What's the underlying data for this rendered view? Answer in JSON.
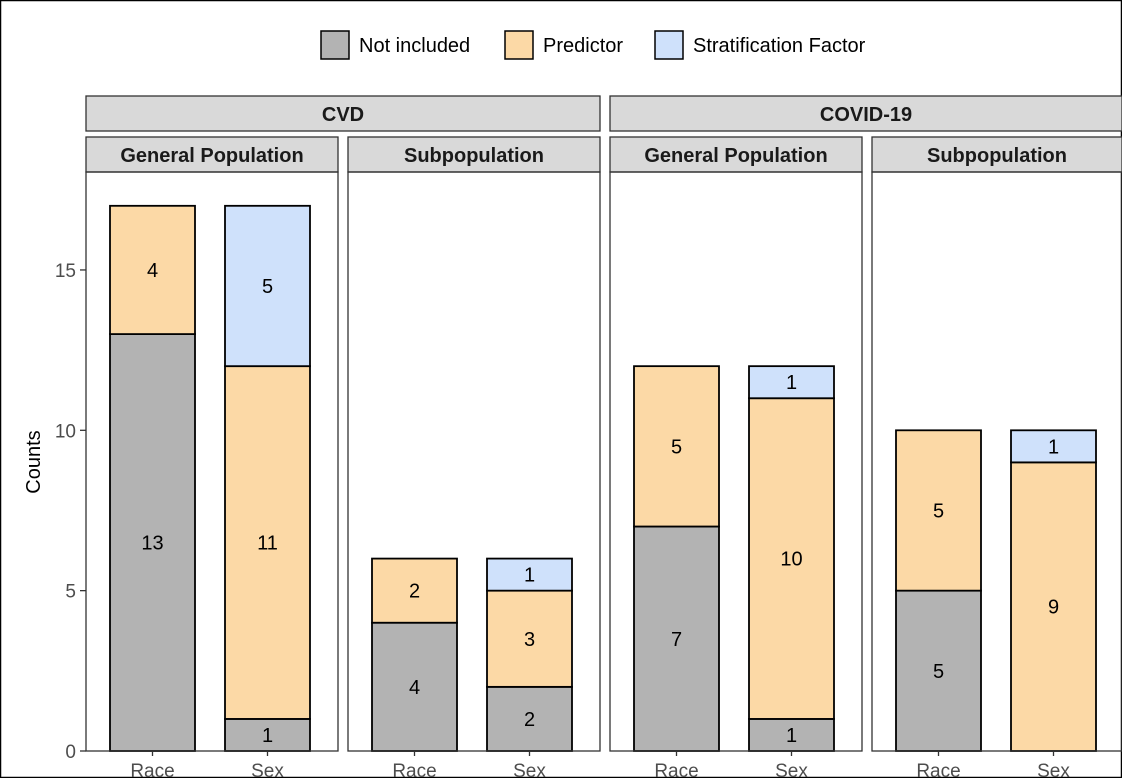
{
  "chart_data": {
    "type": "bar",
    "stacked": true,
    "ylabel": "Counts",
    "xlabel": "",
    "ylim": [
      0,
      18
    ],
    "y_ticks": [
      0,
      5,
      10,
      15
    ],
    "categories": [
      "Race",
      "Sex"
    ],
    "legend": {
      "position": "top",
      "entries": [
        {
          "name": "Not included",
          "color": "#b3b3b3"
        },
        {
          "name": "Predictor",
          "color": "#fcd9a6"
        },
        {
          "name": "Stratification Factor",
          "color": "#cfe1fb"
        }
      ]
    },
    "groups": [
      {
        "name": "CVD",
        "panels": [
          {
            "name": "General Population",
            "bars": [
              {
                "category": "Race",
                "not_included": 13,
                "predictor": 4,
                "stratification_factor": 0
              },
              {
                "category": "Sex",
                "not_included": 1,
                "predictor": 11,
                "stratification_factor": 5
              }
            ]
          },
          {
            "name": "Subpopulation",
            "bars": [
              {
                "category": "Race",
                "not_included": 4,
                "predictor": 2,
                "stratification_factor": 0
              },
              {
                "category": "Sex",
                "not_included": 2,
                "predictor": 3,
                "stratification_factor": 1
              }
            ]
          }
        ]
      },
      {
        "name": "COVID-19",
        "panels": [
          {
            "name": "General Population",
            "bars": [
              {
                "category": "Race",
                "not_included": 7,
                "predictor": 5,
                "stratification_factor": 0
              },
              {
                "category": "Sex",
                "not_included": 1,
                "predictor": 10,
                "stratification_factor": 1
              }
            ]
          },
          {
            "name": "Subpopulation",
            "bars": [
              {
                "category": "Race",
                "not_included": 5,
                "predictor": 5,
                "stratification_factor": 0
              },
              {
                "category": "Sex",
                "not_included": 0,
                "predictor": 9,
                "stratification_factor": 1
              }
            ]
          }
        ]
      }
    ]
  }
}
